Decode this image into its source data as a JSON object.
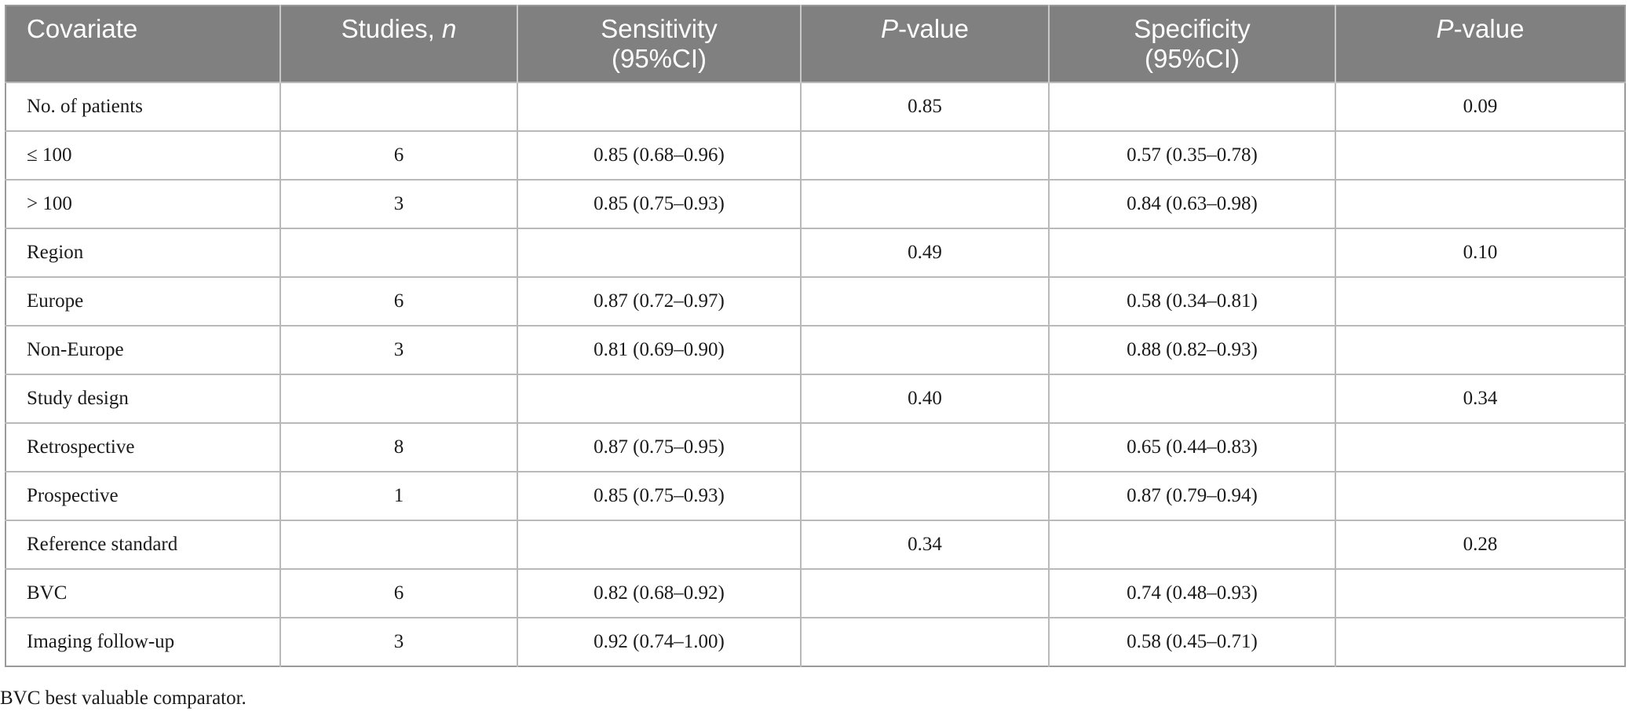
{
  "table": {
    "headers": [
      {
        "text": "Covariate",
        "italic": ""
      },
      {
        "text": "Studies, ",
        "italic": "n"
      },
      {
        "text": "Sensitivity\n(95%CI)",
        "italic": ""
      },
      {
        "text": "-value",
        "italic_prefix": "P"
      },
      {
        "text": "Specificity\n(95%CI)",
        "italic": ""
      },
      {
        "text": "-value",
        "italic_prefix": "P"
      }
    ],
    "rows": [
      [
        "No. of patients",
        "",
        "",
        "0.85",
        "",
        "0.09"
      ],
      [
        "≤ 100",
        "6",
        "0.85 (0.68–0.96)",
        "",
        "0.57 (0.35–0.78)",
        ""
      ],
      [
        "> 100",
        "3",
        "0.85 (0.75–0.93)",
        "",
        "0.84 (0.63–0.98)",
        ""
      ],
      [
        "Region",
        "",
        "",
        "0.49",
        "",
        "0.10"
      ],
      [
        "Europe",
        "6",
        "0.87 (0.72–0.97)",
        "",
        "0.58 (0.34–0.81)",
        ""
      ],
      [
        "Non-Europe",
        "3",
        "0.81 (0.69–0.90)",
        "",
        "0.88 (0.82–0.93)",
        ""
      ],
      [
        "Study design",
        "",
        "",
        "0.40",
        "",
        "0.34"
      ],
      [
        "Retrospective",
        "8",
        "0.87 (0.75–0.95)",
        "",
        "0.65 (0.44–0.83)",
        ""
      ],
      [
        "Prospective",
        "1",
        "0.85 (0.75–0.93)",
        "",
        "0.87 (0.79–0.94)",
        ""
      ],
      [
        "Reference standard",
        "",
        "",
        "0.34",
        "",
        "0.28"
      ],
      [
        "BVC",
        "6",
        "0.82 (0.68–0.92)",
        "",
        "0.74 (0.48–0.93)",
        ""
      ],
      [
        "Imaging follow-up",
        "3",
        "0.92 (0.74–1.00)",
        "",
        "0.58 (0.45–0.71)",
        ""
      ]
    ]
  },
  "footnote": "BVC best valuable comparator.",
  "colors": {
    "header_bg": "#808080",
    "header_text": "#ffffff",
    "grid": "#b9b9b9"
  }
}
